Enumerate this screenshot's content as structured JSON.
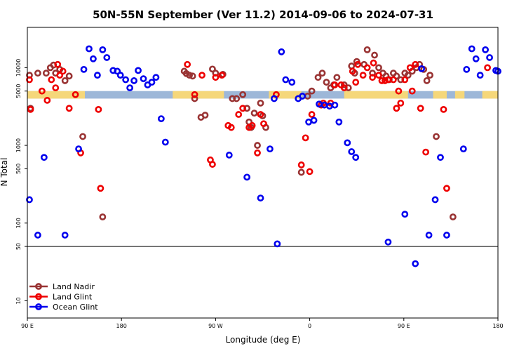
{
  "chart_data": {
    "type": "scatter",
    "title": "50N-55N September (Ver 11.2)   2014-09-06 to 2024-07-31",
    "xlabel": "Longitude (deg E)",
    "ylabel": "N Total",
    "x_ticks": [
      {
        "value": 90,
        "label": "90 E"
      },
      {
        "value": 180,
        "label": "180"
      },
      {
        "value": 270,
        "label": "90 W"
      },
      {
        "value": 360,
        "label": "0"
      },
      {
        "value": 450,
        "label": "90 E"
      },
      {
        "value": 540,
        "label": "180"
      }
    ],
    "y_ticks": [
      {
        "value": 10,
        "label": "10"
      },
      {
        "value": 50,
        "label": "50"
      },
      {
        "value": 100,
        "label": "100"
      },
      {
        "value": 500,
        "label": "500"
      },
      {
        "value": 1000,
        "label": "1000"
      },
      {
        "value": 5000,
        "label": "5000"
      },
      {
        "value": 10000,
        "label": "10000"
      }
    ],
    "xlim": [
      90,
      540
    ],
    "ylim": [
      6,
      33000
    ],
    "y_scale": "log",
    "reference_line": 50,
    "grid": false,
    "legend_position": "bottom-left",
    "surface_band": {
      "y_range": [
        4000,
        5000
      ],
      "land_color": "#f5d77a",
      "ocean_color": "#9db7d8",
      "land_ranges": [
        [
          90,
          145
        ],
        [
          229,
          278
        ],
        [
          321,
          352
        ],
        [
          393,
          454
        ],
        [
          478,
          491
        ],
        [
          499,
          508
        ],
        [
          525,
          540
        ]
      ]
    },
    "series": [
      {
        "name": "Land Nadir",
        "color": "#993333",
        "points": [
          [
            92,
            8000
          ],
          [
            93,
            3000
          ],
          [
            100,
            8500
          ],
          [
            108,
            8500
          ],
          [
            112,
            10000
          ],
          [
            115,
            10800
          ],
          [
            117,
            8500
          ],
          [
            121,
            9500
          ],
          [
            126,
            6800
          ],
          [
            130,
            7800
          ],
          [
            143,
            1300
          ],
          [
            162,
            120
          ],
          [
            240,
            9000
          ],
          [
            242,
            8400
          ],
          [
            245,
            8000
          ],
          [
            248,
            7800
          ],
          [
            250,
            4000
          ],
          [
            256,
            2300
          ],
          [
            260,
            2450
          ],
          [
            267,
            9600
          ],
          [
            270,
            8500
          ],
          [
            277,
            8200
          ],
          [
            286,
            4000
          ],
          [
            290,
            4000
          ],
          [
            296,
            4500
          ],
          [
            300,
            3000
          ],
          [
            302,
            2000
          ],
          [
            304,
            1700
          ],
          [
            307,
            2600
          ],
          [
            310,
            1000
          ],
          [
            313,
            3500
          ],
          [
            315,
            2400
          ],
          [
            318,
            1700
          ],
          [
            352,
            450
          ],
          [
            358,
            4300
          ],
          [
            362,
            5000
          ],
          [
            368,
            7500
          ],
          [
            372,
            8500
          ],
          [
            376,
            6500
          ],
          [
            380,
            5500
          ],
          [
            383,
            6000
          ],
          [
            386,
            7500
          ],
          [
            393,
            6000
          ],
          [
            397,
            5500
          ],
          [
            400,
            10500
          ],
          [
            403,
            8500
          ],
          [
            405,
            12000
          ],
          [
            412,
            11000
          ],
          [
            415,
            17000
          ],
          [
            420,
            8500
          ],
          [
            422,
            14500
          ],
          [
            426,
            10000
          ],
          [
            430,
            8500
          ],
          [
            433,
            7800
          ],
          [
            436,
            7000
          ],
          [
            440,
            8500
          ],
          [
            443,
            7800
          ],
          [
            447,
            7000
          ],
          [
            451,
            8500
          ],
          [
            454,
            8000
          ],
          [
            458,
            9000
          ],
          [
            462,
            10000
          ],
          [
            465,
            11000
          ],
          [
            469,
            9500
          ],
          [
            472,
            6800
          ],
          [
            475,
            8000
          ],
          [
            481,
            1300
          ],
          [
            497,
            120
          ]
        ]
      },
      {
        "name": "Land Glint",
        "color": "#ee0000",
        "points": [
          [
            92,
            7000
          ],
          [
            93,
            2900
          ],
          [
            104,
            5000
          ],
          [
            109,
            3800
          ],
          [
            113,
            7000
          ],
          [
            117,
            5500
          ],
          [
            119,
            11000
          ],
          [
            121,
            8000
          ],
          [
            124,
            9000
          ],
          [
            130,
            3000
          ],
          [
            136,
            4500
          ],
          [
            141,
            800
          ],
          [
            158,
            2900
          ],
          [
            160,
            280
          ],
          [
            243,
            11000
          ],
          [
            250,
            4500
          ],
          [
            257,
            8000
          ],
          [
            265,
            650
          ],
          [
            267,
            570
          ],
          [
            270,
            7500
          ],
          [
            276,
            8000
          ],
          [
            282,
            1800
          ],
          [
            285,
            1700
          ],
          [
            292,
            2500
          ],
          [
            296,
            3000
          ],
          [
            302,
            1700
          ],
          [
            305,
            1800
          ],
          [
            310,
            800
          ],
          [
            313,
            2500
          ],
          [
            316,
            1900
          ],
          [
            328,
            4500
          ],
          [
            352,
            560
          ],
          [
            356,
            1250
          ],
          [
            360,
            460
          ],
          [
            362,
            2500
          ],
          [
            371,
            3300
          ],
          [
            373,
            3500
          ],
          [
            380,
            3500
          ],
          [
            384,
            6000
          ],
          [
            390,
            6000
          ],
          [
            393,
            5500
          ],
          [
            401,
            9000
          ],
          [
            404,
            6500
          ],
          [
            406,
            11000
          ],
          [
            411,
            8000
          ],
          [
            415,
            10000
          ],
          [
            420,
            7500
          ],
          [
            421,
            11500
          ],
          [
            426,
            8000
          ],
          [
            429,
            6800
          ],
          [
            432,
            6800
          ],
          [
            435,
            7000
          ],
          [
            440,
            7000
          ],
          [
            443,
            3000
          ],
          [
            445,
            5000
          ],
          [
            447,
            3500
          ],
          [
            451,
            7000
          ],
          [
            456,
            10000
          ],
          [
            458,
            5000
          ],
          [
            461,
            11000
          ],
          [
            466,
            3000
          ],
          [
            471,
            820
          ],
          [
            488,
            2900
          ],
          [
            491,
            280
          ],
          [
            530,
            10000
          ]
        ]
      },
      {
        "name": "Ocean Glint",
        "color": "#0000ee",
        "points": [
          [
            92,
            200
          ],
          [
            100,
            70
          ],
          [
            106,
            700
          ],
          [
            126,
            70
          ],
          [
            139,
            900
          ],
          [
            144,
            9500
          ],
          [
            149,
            17500
          ],
          [
            153,
            13000
          ],
          [
            157,
            8000
          ],
          [
            162,
            17000
          ],
          [
            166,
            13500
          ],
          [
            172,
            9200
          ],
          [
            176,
            9000
          ],
          [
            179,
            8000
          ],
          [
            184,
            7000
          ],
          [
            188,
            5500
          ],
          [
            192,
            6800
          ],
          [
            196,
            9200
          ],
          [
            201,
            7200
          ],
          [
            205,
            6000
          ],
          [
            209,
            6500
          ],
          [
            213,
            7500
          ],
          [
            218,
            2200
          ],
          [
            222,
            1100
          ],
          [
            283,
            750
          ],
          [
            300,
            390
          ],
          [
            313,
            210
          ],
          [
            322,
            900
          ],
          [
            326,
            4000
          ],
          [
            329,
            54
          ],
          [
            333,
            16000
          ],
          [
            337,
            7000
          ],
          [
            343,
            6500
          ],
          [
            349,
            4000
          ],
          [
            353,
            4300
          ],
          [
            359,
            2000
          ],
          [
            364,
            2100
          ],
          [
            369,
            3400
          ],
          [
            374,
            3300
          ],
          [
            379,
            3200
          ],
          [
            384,
            3300
          ],
          [
            388,
            2000
          ],
          [
            396,
            1080
          ],
          [
            400,
            830
          ],
          [
            404,
            700
          ],
          [
            435,
            57
          ],
          [
            451,
            130
          ],
          [
            461,
            30
          ],
          [
            467,
            9700
          ],
          [
            474,
            70
          ],
          [
            480,
            200
          ],
          [
            485,
            700
          ],
          [
            491,
            70
          ],
          [
            507,
            900
          ],
          [
            510,
            9500
          ],
          [
            515,
            17500
          ],
          [
            519,
            13000
          ],
          [
            523,
            8000
          ],
          [
            528,
            17000
          ],
          [
            532,
            13500
          ],
          [
            538,
            9200
          ],
          [
            540,
            9000
          ]
        ]
      }
    ]
  }
}
